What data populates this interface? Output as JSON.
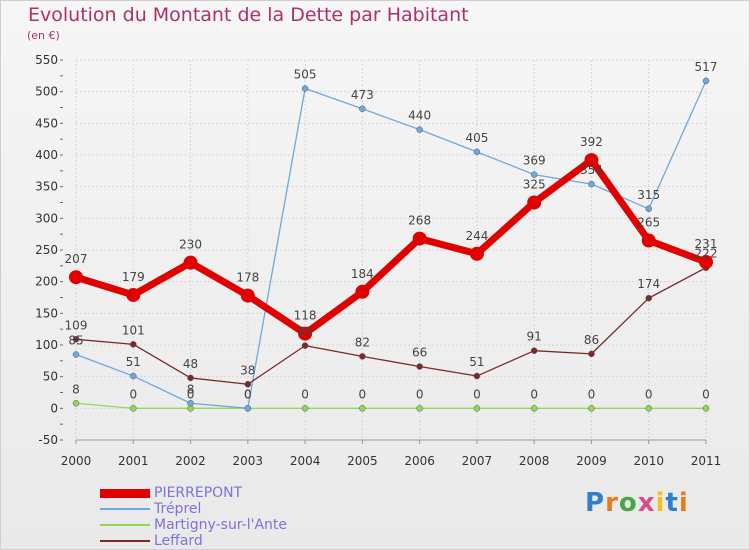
{
  "title": "Evolution du Montant de la Dette par Habitant",
  "subtitle": "(en €)",
  "logo": {
    "text": "Proxiti",
    "colors": [
      "#2f7fd1",
      "#e87a1f",
      "#46a843",
      "#d84b8b",
      "#f0c21a",
      "#2f7fd1",
      "#e87a1f"
    ]
  },
  "chart_data": {
    "type": "line",
    "x": [
      "2000",
      "2001",
      "2002",
      "2003",
      "2004",
      "2005",
      "2006",
      "2007",
      "2008",
      "2009",
      "2010",
      "2011"
    ],
    "ylim": [
      -50,
      550
    ],
    "yticks": [
      -50,
      0,
      50,
      100,
      150,
      200,
      250,
      300,
      350,
      400,
      450,
      500,
      550
    ],
    "grid": true,
    "legend_position": "bottom-left",
    "series": [
      {
        "name": "PIERREPONT",
        "color": "#e00000",
        "values": [
          207,
          179,
          230,
          178,
          118,
          184,
          268,
          244,
          325,
          392,
          265,
          231
        ]
      },
      {
        "name": "Tréprel",
        "color": "#6fa8dc",
        "values": [
          85,
          51,
          8,
          0,
          505,
          473,
          440,
          405,
          369,
          354,
          315,
          517
        ]
      },
      {
        "name": "Martigny-sur-l'Ante",
        "color": "#8fd85a",
        "values": [
          8,
          0,
          0,
          0,
          0,
          0,
          0,
          0,
          0,
          0,
          0,
          0
        ]
      },
      {
        "name": "Leffard",
        "color": "#7a2a2a",
        "values": [
          109,
          101,
          48,
          38,
          99,
          82,
          66,
          51,
          91,
          86,
          174,
          222
        ]
      }
    ],
    "data_labels": [
      [
        207,
        179,
        230,
        178,
        118,
        184,
        268,
        244,
        325,
        392,
        265,
        231
      ],
      [
        85,
        51,
        8,
        0,
        505,
        473,
        440,
        405,
        369,
        354,
        315,
        517
      ],
      [
        8,
        0,
        0,
        0,
        0,
        0,
        0,
        0,
        0,
        0,
        0,
        0
      ],
      [
        109,
        101,
        48,
        38,
        99,
        82,
        66,
        51,
        91,
        86,
        174,
        222
      ]
    ]
  }
}
